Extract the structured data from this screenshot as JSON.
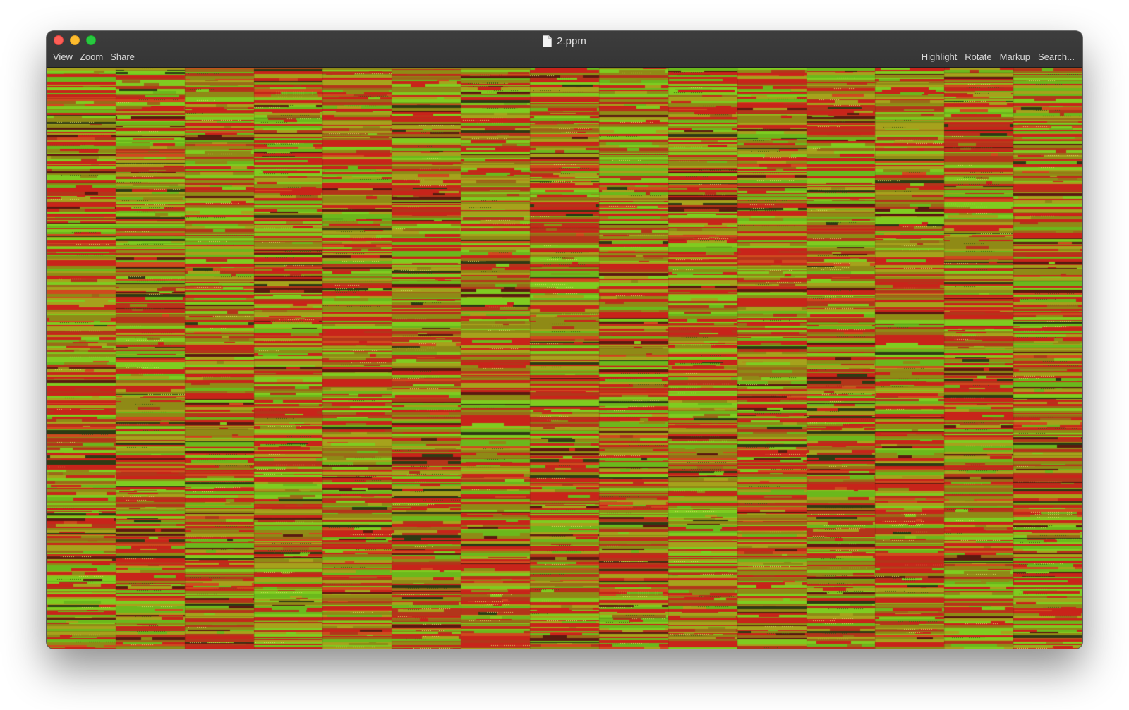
{
  "window": {
    "title": "2.ppm",
    "document_icon": "document-icon"
  },
  "traffic_lights": {
    "close": "#fe5f57",
    "minimize": "#febc2e",
    "zoom": "#28c840"
  },
  "toolbar": {
    "left_menu": [
      "View",
      "Zoom",
      "Share"
    ],
    "right_menu": [
      "Highlight",
      "Rotate",
      "Markup",
      "Search..."
    ]
  },
  "image": {
    "column_bands": 15,
    "palette": [
      "#c8241a",
      "#b3351a",
      "#8f8a16",
      "#a6a21c",
      "#7fcc20",
      "#6bb81c",
      "#5a1a10",
      "#2e3a14",
      "#9a6a18",
      "#cf4a1e"
    ]
  }
}
